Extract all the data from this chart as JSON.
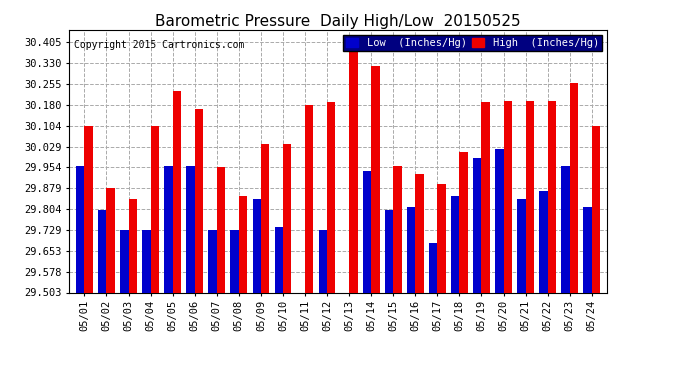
{
  "title": "Barometric Pressure  Daily High/Low  20150525",
  "copyright": "Copyright 2015 Cartronics.com",
  "dates": [
    "05/01",
    "05/02",
    "05/03",
    "05/04",
    "05/05",
    "05/06",
    "05/07",
    "05/08",
    "05/09",
    "05/10",
    "05/11",
    "05/12",
    "05/13",
    "05/14",
    "05/15",
    "05/16",
    "05/17",
    "05/18",
    "05/19",
    "05/20",
    "05/21",
    "05/22",
    "05/23",
    "05/24"
  ],
  "low_values": [
    29.96,
    29.8,
    29.73,
    29.73,
    29.96,
    29.96,
    29.73,
    29.73,
    29.84,
    29.74,
    29.503,
    29.73,
    29.503,
    29.94,
    29.8,
    29.81,
    29.68,
    29.85,
    29.99,
    30.02,
    29.84,
    29.87,
    29.96,
    29.81
  ],
  "high_values": [
    30.105,
    29.88,
    29.84,
    30.105,
    30.23,
    30.165,
    29.955,
    29.85,
    30.04,
    30.04,
    30.18,
    30.19,
    30.41,
    30.32,
    29.96,
    29.93,
    29.895,
    30.01,
    30.19,
    30.195,
    30.195,
    30.195,
    30.26,
    30.105
  ],
  "ylim_min": 29.503,
  "ylim_max": 30.45,
  "yticks": [
    29.503,
    29.578,
    29.653,
    29.729,
    29.804,
    29.879,
    29.954,
    30.029,
    30.104,
    30.18,
    30.255,
    30.33,
    30.405
  ],
  "low_color": "#0000cc",
  "high_color": "#ee0000",
  "bg_color": "#ffffff",
  "grid_color": "#aaaaaa",
  "bar_width": 0.38,
  "legend_low_label": "Low  (Inches/Hg)",
  "legend_high_label": "High  (Inches/Hg)",
  "legend_bg": "#000080"
}
